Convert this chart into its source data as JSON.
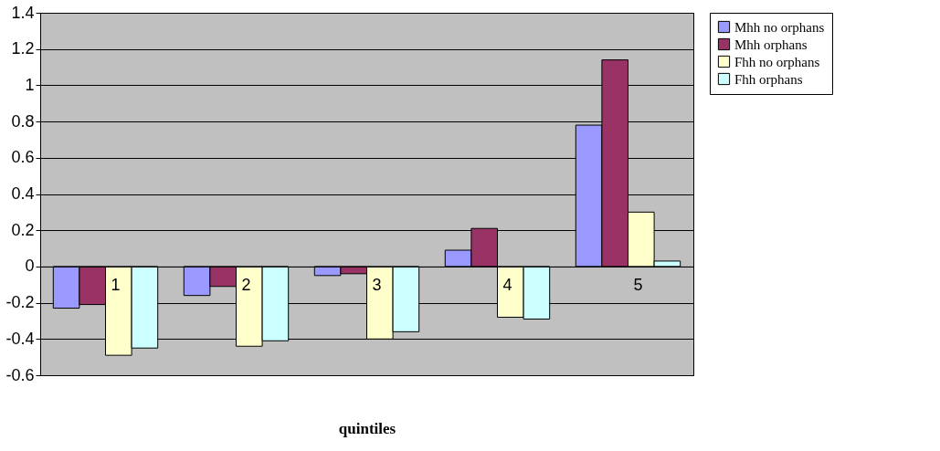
{
  "chart_data": {
    "type": "bar",
    "xlabel": "quintiles",
    "categories": [
      "1",
      "2",
      "3",
      "4",
      "5"
    ],
    "series": [
      {
        "name": "Mhh no orphans",
        "color": "#9999ff",
        "values": [
          -0.23,
          -0.16,
          -0.05,
          0.09,
          0.78
        ]
      },
      {
        "name": "Mhh orphans",
        "color": "#993366",
        "values": [
          -0.21,
          -0.11,
          -0.04,
          0.21,
          1.14
        ]
      },
      {
        "name": "Fhh no orphans",
        "color": "#ffffcc",
        "values": [
          -0.49,
          -0.44,
          -0.4,
          -0.28,
          0.3
        ]
      },
      {
        "name": "Fhh orphans",
        "color": "#ccffff",
        "values": [
          -0.45,
          -0.41,
          -0.36,
          -0.29,
          0.03
        ]
      }
    ],
    "ylim": [
      -0.6,
      1.4
    ],
    "yticks": [
      -0.6,
      -0.4,
      -0.2,
      0,
      0.2,
      0.4,
      0.6,
      0.8,
      1,
      1.2,
      1.4
    ],
    "grid": "y",
    "legend": "right"
  }
}
